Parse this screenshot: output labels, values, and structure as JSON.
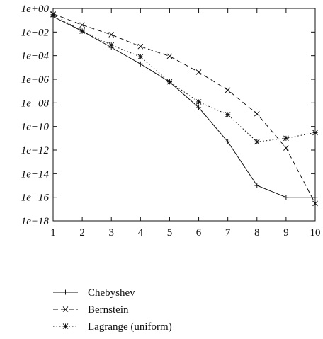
{
  "chart_data": {
    "type": "line",
    "x": [
      1,
      2,
      3,
      4,
      5,
      6,
      7,
      8,
      9,
      10
    ],
    "xlim": [
      1,
      10
    ],
    "ylim": [
      1e-18,
      1
    ],
    "yscale": "log",
    "xticks": [
      "1",
      "2",
      "3",
      "4",
      "5",
      "6",
      "7",
      "8",
      "9",
      "10"
    ],
    "yticks": [
      "1e+00",
      "1e−02",
      "1e−04",
      "1e−06",
      "1e−08",
      "1e−10",
      "1e−12",
      "1e−14",
      "1e−16",
      "1e−18"
    ],
    "grid": false,
    "legend_position": "bottom",
    "series": [
      {
        "name": "Chebyshev",
        "style": "solid",
        "marker": "plus",
        "values": [
          0.2,
          0.012,
          0.0005,
          2e-05,
          6e-07,
          4e-09,
          5e-12,
          1e-15,
          1e-16,
          1e-16
        ]
      },
      {
        "name": "Bernstein",
        "style": "dashed",
        "marker": "x",
        "values": [
          0.35,
          0.04,
          0.006,
          0.0006,
          9e-05,
          4e-06,
          1.2e-07,
          1.2e-09,
          1.5e-12,
          3e-17
        ]
      },
      {
        "name": "Lagrange (uniform)",
        "style": "dotted",
        "marker": "star",
        "values": [
          0.3,
          0.012,
          0.0008,
          8e-05,
          6e-07,
          1.2e-08,
          1e-09,
          5e-12,
          1e-11,
          3e-11
        ]
      }
    ]
  }
}
